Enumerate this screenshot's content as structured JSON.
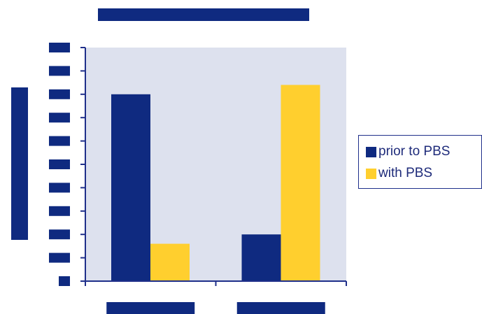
{
  "chart_data": {
    "type": "bar",
    "title": "",
    "xlabel": "",
    "ylabel": "",
    "categories": [
      "",
      ""
    ],
    "series": [
      {
        "name": "prior to PBS",
        "color": "#0f2a80",
        "values": [
          80,
          20
        ]
      },
      {
        "name": "with PBS",
        "color": "#ffcf2e",
        "values": [
          16,
          84
        ]
      }
    ],
    "ylim": [
      0,
      100
    ],
    "y_ticks": [
      0,
      10,
      20,
      30,
      40,
      50,
      60,
      70,
      80,
      90,
      100
    ],
    "grid": false,
    "plot_background": "#dde1ee",
    "axis_color": "#1f2f8a",
    "legend_position": "right",
    "note": "Title, axis labels, tick labels and category labels are redacted with solid dark blocks in the source image."
  },
  "colors": {
    "redaction": "#0f2a80"
  }
}
